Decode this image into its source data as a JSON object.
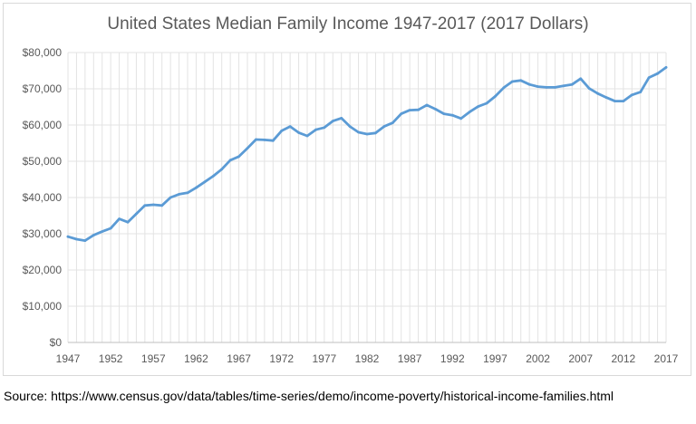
{
  "chart_data": {
    "type": "line",
    "title": "United States Median Family Income 1947-2017 (2017 Dollars)",
    "xlabel": "",
    "ylabel": "",
    "x": [
      1947,
      1948,
      1949,
      1950,
      1951,
      1952,
      1953,
      1954,
      1955,
      1956,
      1957,
      1958,
      1959,
      1960,
      1961,
      1962,
      1963,
      1964,
      1965,
      1966,
      1967,
      1968,
      1969,
      1970,
      1971,
      1972,
      1973,
      1974,
      1975,
      1976,
      1977,
      1978,
      1979,
      1980,
      1981,
      1982,
      1983,
      1984,
      1985,
      1986,
      1987,
      1988,
      1989,
      1990,
      1991,
      1992,
      1993,
      1994,
      1995,
      1996,
      1997,
      1998,
      1999,
      2000,
      2001,
      2002,
      2003,
      2004,
      2005,
      2006,
      2007,
      2008,
      2009,
      2010,
      2011,
      2012,
      2013,
      2014,
      2015,
      2016,
      2017
    ],
    "series": [
      {
        "values": [
          29200,
          28500,
          28100,
          29600,
          30600,
          31500,
          34100,
          33200,
          35500,
          37800,
          38000,
          37800,
          40000,
          40900,
          41300,
          42700,
          44300,
          45900,
          47800,
          50300,
          51300,
          53600,
          56000,
          55900,
          55700,
          58400,
          59600,
          57900,
          57000,
          58700,
          59300,
          61100,
          61900,
          59600,
          58000,
          57500,
          57800,
          59600,
          60600,
          63100,
          64100,
          64200,
          65500,
          64400,
          63100,
          62700,
          61800,
          63600,
          65100,
          66000,
          67900,
          70300,
          72000,
          72300,
          71200,
          70600,
          70400,
          70400,
          70800,
          71200,
          72800,
          70100,
          68700,
          67600,
          66600,
          66600,
          68300,
          69100,
          73100,
          74200,
          75900
        ],
        "color": "#5b9bd5"
      }
    ],
    "xlim": [
      1947,
      2017
    ],
    "ylim": [
      0,
      80000
    ],
    "x_ticks": [
      "1947",
      "1952",
      "1957",
      "1962",
      "1967",
      "1972",
      "1977",
      "1982",
      "1987",
      "1992",
      "1997",
      "2002",
      "2007",
      "2012",
      "2017"
    ],
    "y_ticks": [
      "$0",
      "$10,000",
      "$20,000",
      "$30,000",
      "$40,000",
      "$50,000",
      "$60,000",
      "$70,000",
      "$80,000"
    ],
    "grid": "both",
    "legend": "none"
  },
  "source": "Source: https://www.census.gov/data/tables/time-series/demo/income-poverty/historical-income-families.html"
}
